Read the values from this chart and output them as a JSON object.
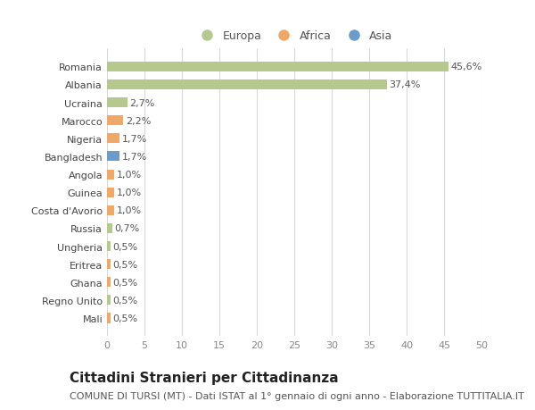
{
  "categories": [
    "Romania",
    "Albania",
    "Ucraina",
    "Marocco",
    "Nigeria",
    "Bangladesh",
    "Angola",
    "Guinea",
    "Costa d'Avorio",
    "Russia",
    "Ungheria",
    "Eritrea",
    "Ghana",
    "Regno Unito",
    "Mali"
  ],
  "values": [
    45.6,
    37.4,
    2.7,
    2.2,
    1.7,
    1.7,
    1.0,
    1.0,
    1.0,
    0.7,
    0.5,
    0.5,
    0.5,
    0.5,
    0.5
  ],
  "labels": [
    "45,6%",
    "37,4%",
    "2,7%",
    "2,2%",
    "1,7%",
    "1,7%",
    "1,0%",
    "1,0%",
    "1,0%",
    "0,7%",
    "0,5%",
    "0,5%",
    "0,5%",
    "0,5%",
    "0,5%"
  ],
  "continents": [
    "Europa",
    "Europa",
    "Europa",
    "Africa",
    "Africa",
    "Asia",
    "Africa",
    "Africa",
    "Africa",
    "Europa",
    "Europa",
    "Africa",
    "Africa",
    "Europa",
    "Africa"
  ],
  "continent_colors": {
    "Europa": "#b5c98e",
    "Africa": "#f0a868",
    "Asia": "#6b9bc8"
  },
  "legend_entries": [
    "Europa",
    "Africa",
    "Asia"
  ],
  "title": "Cittadini Stranieri per Cittadinanza",
  "subtitle": "COMUNE DI TURSI (MT) - Dati ISTAT al 1° gennaio di ogni anno - Elaborazione TUTTITALIA.IT",
  "xlim": [
    0,
    50
  ],
  "xticks": [
    0,
    5,
    10,
    15,
    20,
    25,
    30,
    35,
    40,
    45,
    50
  ],
  "background_color": "#ffffff",
  "grid_color": "#d8d8d8",
  "bar_height": 0.55,
  "title_fontsize": 11,
  "subtitle_fontsize": 8,
  "label_fontsize": 8,
  "tick_fontsize": 8,
  "legend_fontsize": 9
}
